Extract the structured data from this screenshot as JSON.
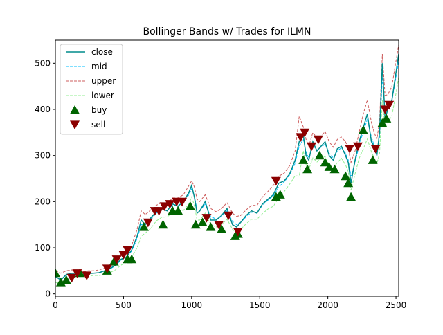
{
  "chart_data": {
    "type": "line",
    "title": "Bollinger Bands w/ Trades for ILMN",
    "xlabel": "",
    "ylabel": "",
    "xlim": [
      0,
      2520
    ],
    "ylim": [
      -5,
      550
    ],
    "xticks": [
      0,
      500,
      1000,
      1500,
      2000,
      2500
    ],
    "yticks": [
      0,
      100,
      200,
      300,
      400,
      500
    ],
    "grid": false,
    "legend_position": "top-left",
    "x": [
      0,
      40,
      80,
      120,
      160,
      200,
      240,
      280,
      320,
      360,
      400,
      440,
      480,
      520,
      560,
      600,
      630,
      660,
      700,
      740,
      780,
      820,
      860,
      900,
      940,
      980,
      1000,
      1020,
      1040,
      1060,
      1100,
      1140,
      1180,
      1220,
      1260,
      1300,
      1330,
      1360,
      1400,
      1440,
      1480,
      1520,
      1560,
      1600,
      1640,
      1680,
      1720,
      1760,
      1790,
      1820,
      1840,
      1860,
      1890,
      1920,
      1950,
      1980,
      2010,
      2040,
      2070,
      2100,
      2130,
      2150,
      2170,
      2200,
      2230,
      2260,
      2290,
      2320,
      2340,
      2360,
      2380,
      2400,
      2420,
      2440,
      2470,
      2500,
      2520
    ],
    "series": [
      {
        "name": "close",
        "color": "#008b8b",
        "style": "solid",
        "values": [
          38,
          30,
          42,
          45,
          44,
          42,
          44,
          45,
          46,
          50,
          55,
          62,
          75,
          80,
          95,
          125,
          160,
          150,
          165,
          178,
          185,
          180,
          195,
          190,
          200,
          220,
          235,
          210,
          175,
          180,
          200,
          160,
          160,
          170,
          185,
          150,
          145,
          155,
          170,
          180,
          175,
          195,
          205,
          215,
          240,
          245,
          260,
          290,
          330,
          345,
          300,
          290,
          330,
          310,
          320,
          330,
          300,
          290,
          315,
          320,
          300,
          285,
          240,
          290,
          330,
          360,
          390,
          330,
          320,
          300,
          350,
          500,
          380,
          400,
          420,
          480,
          520
        ]
      },
      {
        "name": "mid",
        "color": "#00bfff",
        "style": "dashed",
        "values": [
          37,
          33,
          40,
          44,
          44,
          43,
          44,
          45,
          46,
          49,
          54,
          61,
          73,
          80,
          93,
          120,
          150,
          152,
          162,
          175,
          182,
          181,
          192,
          192,
          198,
          215,
          228,
          212,
          182,
          180,
          195,
          168,
          162,
          168,
          180,
          157,
          150,
          155,
          167,
          177,
          177,
          192,
          203,
          212,
          232,
          243,
          258,
          283,
          320,
          336,
          308,
          295,
          322,
          312,
          318,
          325,
          305,
          295,
          310,
          317,
          305,
          290,
          255,
          285,
          322,
          352,
          378,
          340,
          322,
          308,
          340,
          470,
          395,
          402,
          418,
          470,
          505
        ]
      },
      {
        "name": "upper",
        "color": "#cd5c5c",
        "style": "dashed",
        "values": [
          50,
          45,
          50,
          52,
          50,
          48,
          50,
          50,
          52,
          56,
          62,
          70,
          85,
          92,
          105,
          140,
          180,
          172,
          182,
          192,
          198,
          195,
          208,
          208,
          215,
          235,
          245,
          232,
          205,
          200,
          215,
          185,
          178,
          185,
          198,
          175,
          168,
          170,
          182,
          192,
          192,
          210,
          222,
          235,
          255,
          262,
          278,
          310,
          385,
          362,
          335,
          320,
          350,
          338,
          342,
          352,
          330,
          318,
          335,
          340,
          330,
          315,
          285,
          310,
          350,
          390,
          420,
          372,
          350,
          335,
          375,
          520,
          430,
          432,
          450,
          505,
          540
        ]
      },
      {
        "name": "lower",
        "color": "#90ee90",
        "style": "dashed",
        "values": [
          25,
          22,
          30,
          36,
          38,
          38,
          38,
          40,
          40,
          42,
          46,
          52,
          62,
          68,
          80,
          100,
          125,
          132,
          142,
          158,
          166,
          167,
          176,
          176,
          181,
          195,
          210,
          192,
          160,
          160,
          175,
          150,
          145,
          150,
          162,
          140,
          132,
          140,
          152,
          162,
          162,
          174,
          184,
          190,
          208,
          222,
          238,
          256,
          255,
          310,
          280,
          270,
          295,
          286,
          294,
          298,
          280,
          272,
          285,
          294,
          280,
          265,
          225,
          260,
          294,
          314,
          336,
          308,
          295,
          282,
          305,
          420,
          360,
          372,
          386,
          435,
          470
        ]
      }
    ],
    "buy": {
      "name": "buy",
      "color": "#006400",
      "x": [
        0,
        40,
        80,
        180,
        380,
        430,
        530,
        560,
        650,
        790,
        860,
        900,
        990,
        1030,
        1080,
        1140,
        1220,
        1320,
        1340,
        1620,
        1650,
        1820,
        1850,
        1940,
        1980,
        2010,
        2050,
        2130,
        2150,
        2170,
        2260,
        2330,
        2400,
        2430
      ],
      "y": [
        45,
        25,
        30,
        45,
        50,
        70,
        75,
        75,
        145,
        150,
        180,
        180,
        190,
        150,
        155,
        145,
        140,
        125,
        130,
        210,
        215,
        290,
        270,
        300,
        285,
        275,
        270,
        255,
        240,
        210,
        355,
        290,
        370,
        380
      ]
    },
    "sell": {
      "name": "sell",
      "color": "#8b0000",
      "x": [
        120,
        160,
        230,
        380,
        450,
        500,
        530,
        680,
        730,
        760,
        800,
        840,
        890,
        930,
        1110,
        1200,
        1270,
        1340,
        1620,
        1800,
        1830,
        1880,
        1930,
        2160,
        2220,
        2350,
        2420,
        2450
      ],
      "y": [
        35,
        45,
        40,
        55,
        75,
        85,
        95,
        155,
        180,
        180,
        190,
        195,
        200,
        200,
        165,
        150,
        170,
        135,
        245,
        340,
        350,
        320,
        335,
        315,
        320,
        315,
        400,
        410
      ]
    },
    "legend": [
      "close",
      "mid",
      "upper",
      "lower",
      "buy",
      "sell"
    ]
  }
}
